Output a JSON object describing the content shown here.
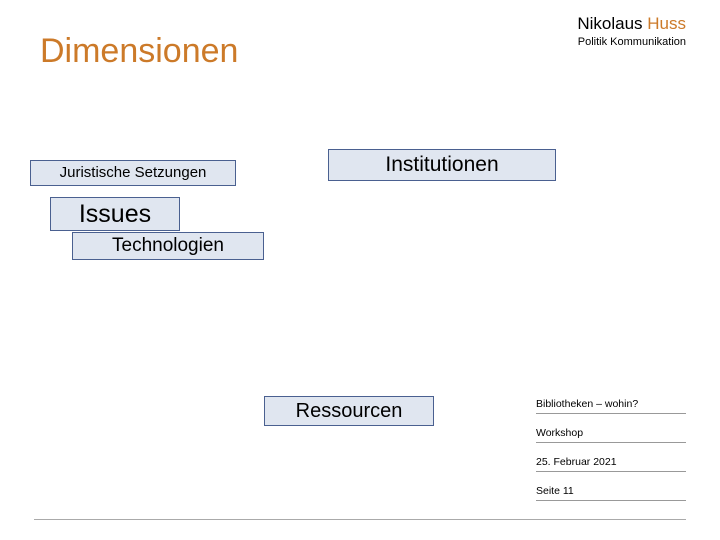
{
  "header": {
    "firstname": "Nikolaus ",
    "surname": "Huss",
    "subtitle": "Politik Kommunikation"
  },
  "title": "Dimensionen",
  "boxes": {
    "juristische": "Juristische Setzungen",
    "institutionen": "Institutionen",
    "issues": "Issues",
    "technologien": "Technologien",
    "ressourcen": "Ressourcen"
  },
  "footer": {
    "line1": "Bibliotheken – wohin?",
    "line2": "Workshop",
    "line3": "25. Februar 2021",
    "line4": "Seite 11"
  },
  "colors": {
    "accent": "#cc7a29",
    "box_bg": "#e0e6f0",
    "box_border": "#4a6090",
    "text": "#000000",
    "rule": "#999999"
  }
}
